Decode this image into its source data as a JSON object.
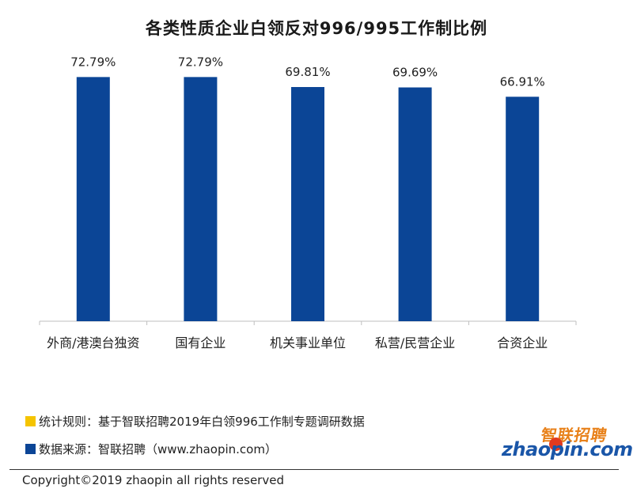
{
  "title": "各类性质企业白领反对996/995工作制比例",
  "chart_data": {
    "type": "bar",
    "categories": [
      "外商/港澳台独资",
      "国有企业",
      "机关事业单位",
      "私营/民营企业",
      "合资企业"
    ],
    "values": [
      72.79,
      72.79,
      69.81,
      69.69,
      66.91
    ],
    "value_labels": [
      "72.79%",
      "72.79%",
      "69.81%",
      "69.69%",
      "66.91%"
    ],
    "bar_color": "#0b4596",
    "ylim": [
      0,
      75
    ],
    "grid": false,
    "legend": "none"
  },
  "footnotes": {
    "rule_text": "统计规则：基于智联招聘2019年白领996工作制专题调研数据",
    "rule_color": "#f5c400",
    "source_text": "数据来源：智联招聘（www.zhaopin.com）",
    "source_color": "#0b4596"
  },
  "logo": {
    "cn": "智联招聘",
    "en": "zhaopin.com"
  },
  "copyright": "Copyright©2019 zhaopin all rights reserved"
}
